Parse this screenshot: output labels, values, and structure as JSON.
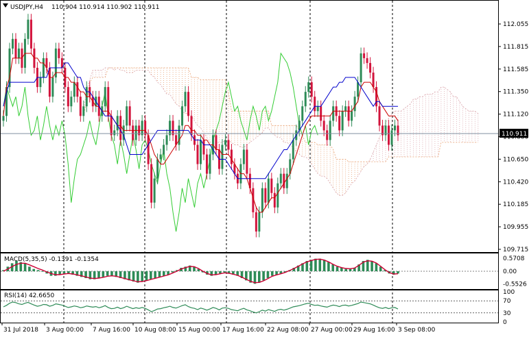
{
  "header": {
    "symbol": "USDJPY,H4",
    "ohlc": "110.904 110.914 110.902 110.911"
  },
  "colors": {
    "bull": "#2e8b57",
    "bear": "#d2143c",
    "tenkan": "#cc0000",
    "kijun": "#0000cc",
    "chikou": "#33cc33",
    "span_a_cloud": "#d8a0a8",
    "span_b_cloud": "#e8a070",
    "grid": "#000000",
    "macd_hist": "#2e8b57",
    "macd_signal": "#cc0033",
    "rsi_line": "#2e8b57"
  },
  "chart_data": [
    {
      "type": "candlestick",
      "name": "main",
      "ylim": [
        109.715,
        112.255
      ],
      "y_ticks": [
        "112.055",
        "111.815",
        "111.585",
        "111.350",
        "111.120",
        "110.880",
        "110.650",
        "110.420",
        "110.185",
        "109.955",
        "109.715"
      ],
      "current_price": "110.911",
      "x_tick_labels": [
        "31 Jul 2018",
        "3 Aug 00:00",
        "7 Aug 16:00",
        "10 Aug 08:00",
        "15 Aug 00:00",
        "17 Aug 16:00",
        "22 Aug 08:00",
        "27 Aug 00:00",
        "29 Aug 16:00",
        "3 Sep 08:00"
      ],
      "closes": [
        111.1,
        111.4,
        111.8,
        111.9,
        111.7,
        111.8,
        111.6,
        111.9,
        112.1,
        111.8,
        111.6,
        111.4,
        111.5,
        111.7,
        111.6,
        111.3,
        111.5,
        111.8,
        111.7,
        111.6,
        111.4,
        111.2,
        111.3,
        111.45,
        111.3,
        111.1,
        111.2,
        111.4,
        111.3,
        111.2,
        111.3,
        111.1,
        111.2,
        111.4,
        111.1,
        110.9,
        110.95,
        111.1,
        110.85,
        111.0,
        111.2,
        111.0,
        110.85,
        111.0,
        110.9,
        111.05,
        110.9,
        110.6,
        110.2,
        110.45,
        110.65,
        110.7,
        110.8,
        110.9,
        111.05,
        110.9,
        110.8,
        111.0,
        111.2,
        111.35,
        111.1,
        110.9,
        110.8,
        110.6,
        110.85,
        110.7,
        110.5,
        110.7,
        110.9,
        110.75,
        110.55,
        110.8,
        110.85,
        110.75,
        110.6,
        110.5,
        110.4,
        110.6,
        110.75,
        110.5,
        110.35,
        110.1,
        109.9,
        110.1,
        110.35,
        110.2,
        110.45,
        110.3,
        110.15,
        110.4,
        110.5,
        110.35,
        110.5,
        110.65,
        110.85,
        110.95,
        111.05,
        111.2,
        111.35,
        111.45,
        111.3,
        111.15,
        111.2,
        111.05,
        110.95,
        110.85,
        111.05,
        111.2,
        111.1,
        110.95,
        111.15,
        111.2,
        111.05,
        111.15,
        111.3,
        111.45,
        111.75,
        111.7,
        111.65,
        111.55,
        111.4,
        111.2,
        111.0,
        110.9,
        111.0,
        110.8,
        110.95,
        111.0,
        110.9
      ],
      "tenkan": [
        111.1,
        111.4,
        111.5,
        111.7,
        111.7,
        111.7,
        111.7,
        111.75,
        111.75,
        111.75,
        111.7,
        111.7,
        111.65,
        111.65,
        111.6,
        111.5,
        111.5,
        111.55,
        111.55,
        111.55,
        111.5,
        111.5,
        111.45,
        111.45,
        111.4,
        111.35,
        111.35,
        111.3,
        111.3,
        111.25,
        111.2,
        111.2,
        111.15,
        111.15,
        111.15,
        111.1,
        111.05,
        111.0,
        111.0,
        110.95,
        110.95,
        110.95,
        110.95,
        110.95,
        110.95,
        110.95,
        110.95,
        110.9,
        110.8,
        110.7,
        110.65,
        110.6,
        110.6,
        110.65,
        110.7,
        110.75,
        110.8,
        110.85,
        110.9,
        111.0,
        111.0,
        110.95,
        110.95,
        110.9,
        110.9,
        110.85,
        110.85,
        110.8,
        110.8,
        110.75,
        110.75,
        110.7,
        110.7,
        110.7,
        110.65,
        110.6,
        110.55,
        110.5,
        110.5,
        110.45,
        110.35,
        110.25,
        110.15,
        110.1,
        110.1,
        110.15,
        110.2,
        110.25,
        110.25,
        110.3,
        110.35,
        110.4,
        110.45,
        110.5,
        110.6,
        110.7,
        110.8,
        110.9,
        111.0,
        111.05,
        111.1,
        111.1,
        111.1,
        111.1,
        111.1,
        111.1,
        111.1,
        111.15,
        111.15,
        111.15,
        111.15,
        111.15,
        111.15,
        111.15,
        111.2,
        111.25,
        111.4,
        111.45,
        111.45,
        111.45,
        111.4,
        111.35,
        111.25,
        111.2,
        111.15,
        111.1,
        111.1,
        111.1,
        111.05
      ],
      "kijun": [
        111.2,
        111.35,
        111.45,
        111.45,
        111.45,
        111.45,
        111.45,
        111.45,
        111.45,
        111.45,
        111.45,
        111.5,
        111.5,
        111.5,
        111.5,
        111.6,
        111.6,
        111.6,
        111.6,
        111.6,
        111.65,
        111.65,
        111.6,
        111.55,
        111.5,
        111.5,
        111.4,
        111.35,
        111.35,
        111.3,
        111.25,
        111.2,
        111.15,
        111.1,
        111.1,
        111.1,
        111.05,
        111.0,
        110.95,
        110.9,
        110.8,
        110.7,
        110.7,
        110.7,
        110.7,
        110.7,
        110.75,
        110.8,
        110.85,
        110.9,
        110.95,
        110.95,
        110.95,
        110.95,
        110.95,
        110.95,
        110.95,
        110.95,
        110.95,
        110.95,
        110.95,
        110.9,
        110.85,
        110.85,
        110.85,
        110.8,
        110.8,
        110.8,
        110.75,
        110.7,
        110.65,
        110.65,
        110.65,
        110.6,
        110.55,
        110.5,
        110.45,
        110.45,
        110.45,
        110.45,
        110.45,
        110.45,
        110.45,
        110.45,
        110.45,
        110.45,
        110.5,
        110.55,
        110.6,
        110.65,
        110.7,
        110.75,
        110.75,
        110.8,
        110.85,
        110.9,
        110.95,
        111.0,
        111.05,
        111.1,
        111.15,
        111.2,
        111.2,
        111.2,
        111.25,
        111.3,
        111.35,
        111.4,
        111.4,
        111.45,
        111.45,
        111.5,
        111.5,
        111.5,
        111.5,
        111.45,
        111.4,
        111.35,
        111.3,
        111.25,
        111.2,
        111.25,
        111.25,
        111.2,
        111.2,
        111.2,
        111.2,
        111.2,
        111.2
      ]
    },
    {
      "type": "bar",
      "name": "macd",
      "label": "MACD(5,35,5) -0.1391 -0.1354",
      "ylim": [
        -0.6,
        0.6
      ],
      "y_ticks": [
        "0.5708",
        "0.00",
        "-0.5526"
      ],
      "histogram": [
        0.05,
        0.2,
        0.35,
        0.45,
        0.4,
        0.35,
        0.2,
        0.1,
        0.05,
        0.0,
        -0.1,
        -0.2,
        -0.2,
        -0.15,
        -0.1,
        -0.1,
        -0.15,
        -0.2,
        -0.25,
        -0.3,
        -0.35,
        -0.35,
        -0.3,
        -0.25,
        -0.2,
        -0.2,
        -0.25,
        -0.3,
        -0.35,
        -0.4,
        -0.45,
        -0.5,
        -0.45,
        -0.4,
        -0.35,
        -0.3,
        -0.25,
        -0.2,
        -0.15,
        -0.05,
        0.05,
        0.15,
        0.2,
        0.25,
        0.2,
        0.1,
        -0.05,
        -0.15,
        -0.2,
        -0.15,
        -0.1,
        -0.05,
        -0.1,
        -0.15,
        -0.2,
        -0.3,
        -0.4,
        -0.5,
        -0.55,
        -0.5,
        -0.4,
        -0.3,
        -0.2,
        -0.15,
        -0.1,
        -0.05,
        0.05,
        0.15,
        0.25,
        0.35,
        0.45,
        0.5,
        0.55,
        0.55,
        0.5,
        0.4,
        0.3,
        0.2,
        0.15,
        0.1,
        0.1,
        0.15,
        0.3,
        0.45,
        0.5,
        0.45,
        0.35,
        0.2,
        0.05,
        -0.1,
        -0.15,
        -0.1
      ],
      "signal": [
        0.0,
        0.1,
        0.2,
        0.3,
        0.35,
        0.35,
        0.28,
        0.2,
        0.12,
        0.05,
        -0.03,
        -0.1,
        -0.15,
        -0.15,
        -0.12,
        -0.1,
        -0.12,
        -0.16,
        -0.2,
        -0.25,
        -0.3,
        -0.32,
        -0.3,
        -0.27,
        -0.22,
        -0.2,
        -0.22,
        -0.27,
        -0.32,
        -0.37,
        -0.42,
        -0.46,
        -0.45,
        -0.41,
        -0.36,
        -0.31,
        -0.26,
        -0.21,
        -0.16,
        -0.08,
        0.0,
        0.1,
        0.16,
        0.21,
        0.2,
        0.12,
        0.0,
        -0.1,
        -0.16,
        -0.15,
        -0.11,
        -0.07,
        -0.09,
        -0.13,
        -0.18,
        -0.26,
        -0.35,
        -0.44,
        -0.5,
        -0.49,
        -0.42,
        -0.32,
        -0.22,
        -0.16,
        -0.11,
        -0.05,
        0.03,
        0.12,
        0.22,
        0.32,
        0.41,
        0.47,
        0.52,
        0.53,
        0.49,
        0.41,
        0.31,
        0.22,
        0.16,
        0.12,
        0.11,
        0.14,
        0.26,
        0.4,
        0.46,
        0.44,
        0.36,
        0.22,
        0.07,
        -0.06,
        -0.12,
        -0.11
      ]
    },
    {
      "type": "line",
      "name": "rsi",
      "label": "RSI(14) 42.6650",
      "ylim": [
        0,
        100
      ],
      "y_ticks": [
        "100",
        "70",
        "30",
        "0"
      ],
      "levels": [
        70,
        30
      ],
      "values": [
        50,
        55,
        62,
        66,
        64,
        60,
        58,
        62,
        65,
        60,
        56,
        52,
        54,
        58,
        57,
        52,
        55,
        60,
        58,
        56,
        52,
        48,
        50,
        53,
        51,
        47,
        49,
        53,
        51,
        49,
        51,
        47,
        50,
        54,
        48,
        44,
        45,
        49,
        44,
        47,
        52,
        48,
        44,
        47,
        45,
        48,
        45,
        40,
        34,
        38,
        43,
        44,
        47,
        49,
        52,
        48,
        46,
        50,
        54,
        57,
        51,
        47,
        45,
        41,
        46,
        43,
        39,
        43,
        48,
        45,
        40,
        46,
        47,
        45,
        41,
        39,
        37,
        42,
        45,
        40,
        37,
        33,
        30,
        34,
        39,
        36,
        41,
        38,
        35,
        40,
        42,
        39,
        42,
        46,
        50,
        52,
        54,
        57,
        60,
        62,
        58,
        55,
        56,
        53,
        51,
        49,
        53,
        56,
        54,
        51,
        55,
        56,
        53,
        55,
        58,
        61,
        66,
        64,
        62,
        60,
        56,
        51,
        47,
        45,
        48,
        44,
        47,
        48,
        43
      ]
    }
  ]
}
